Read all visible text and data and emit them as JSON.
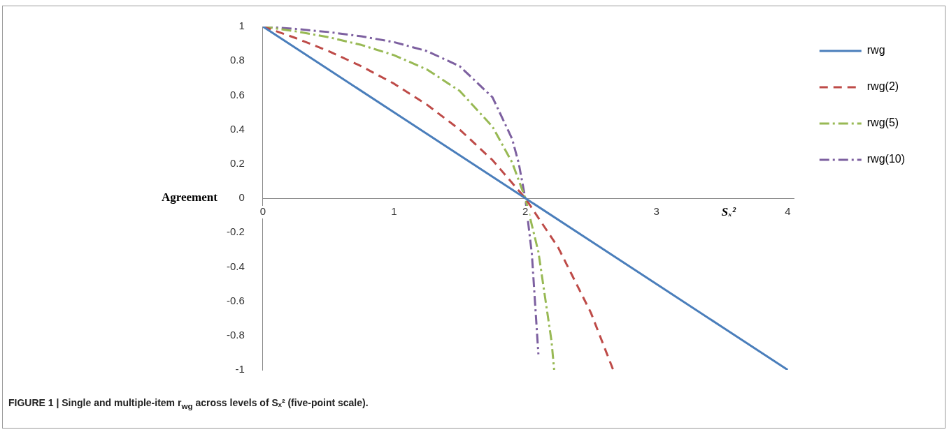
{
  "chart_data": {
    "type": "line",
    "xlabel": "Sₓ²",
    "ylabel": "Agreement",
    "xlim": [
      0,
      4.05
    ],
    "xticks": [
      0,
      1,
      2,
      3,
      4
    ],
    "ylim": [
      -1,
      1
    ],
    "yticks": [
      -1,
      -0.8,
      -0.6,
      -0.4,
      -0.2,
      0,
      0.2,
      0.4,
      0.6,
      0.8,
      1
    ],
    "grid": false,
    "legend": "right",
    "marker": "none",
    "series": [
      {
        "name": "rwg",
        "color": "#4a7ebb",
        "line_style": "solid",
        "x": [
          0,
          0.5,
          1,
          1.5,
          2,
          2.5,
          3,
          3.5,
          4
        ],
        "values": [
          1,
          0.75,
          0.5,
          0.25,
          0,
          -0.25,
          -0.5,
          -0.75,
          -1
        ]
      },
      {
        "name": "rwg(2)",
        "color": "#be4b48",
        "line_style": "dashed",
        "x": [
          0,
          0.25,
          0.5,
          0.75,
          1,
          1.25,
          1.5,
          1.75,
          2,
          2.25,
          2.5,
          2.67
        ],
        "values": [
          1,
          0.933,
          0.857,
          0.769,
          0.667,
          0.545,
          0.4,
          0.222,
          0,
          -0.286,
          -0.667,
          -1
        ]
      },
      {
        "name": "rwg(5)",
        "color": "#98b954",
        "line_style": "dash-dot",
        "x": [
          0,
          0.25,
          0.5,
          0.75,
          1,
          1.25,
          1.5,
          1.75,
          1.9,
          2,
          2.1,
          2.2,
          2.22
        ],
        "values": [
          1,
          0.972,
          0.938,
          0.893,
          0.833,
          0.75,
          0.625,
          0.417,
          0.208,
          0,
          -0.313,
          -0.833,
          -1
        ]
      },
      {
        "name": "rwg(10)",
        "color": "#7d60a0",
        "line_style": "dash-dot",
        "x": [
          0,
          0.25,
          0.5,
          0.75,
          1,
          1.25,
          1.5,
          1.75,
          1.9,
          1.95,
          2,
          2.05,
          2.1
        ],
        "values": [
          1,
          0.986,
          0.968,
          0.943,
          0.909,
          0.857,
          0.769,
          0.588,
          0.345,
          0.204,
          0,
          -0.323,
          -0.909
        ]
      }
    ],
    "annotations": [
      "FIGURE 1 | Single and multiple-item r$_{wg}$ across levels of Sₓ² (five-point scale)."
    ]
  }
}
